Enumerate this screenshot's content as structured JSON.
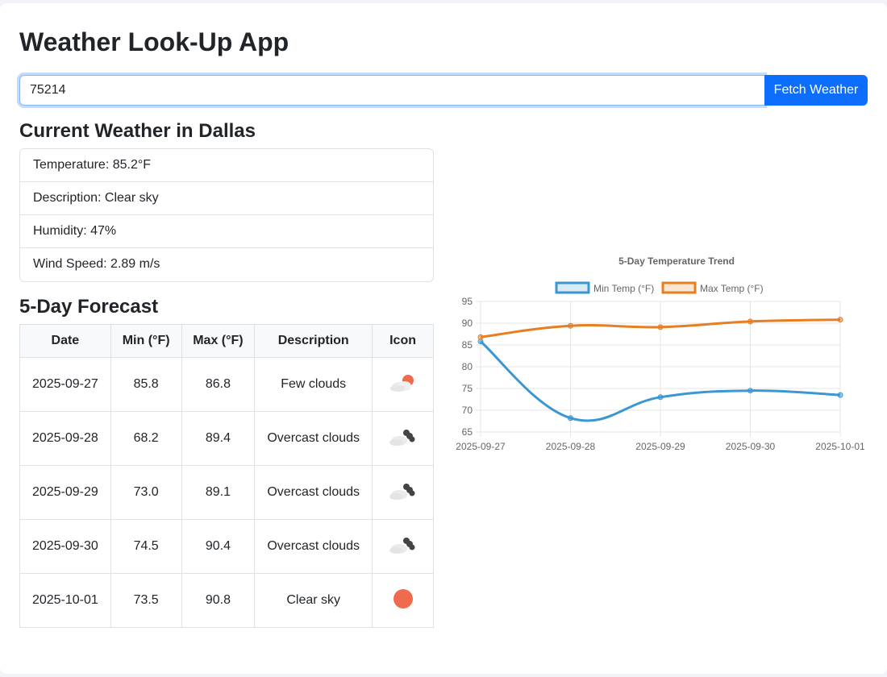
{
  "app": {
    "title": "Weather Look-Up App"
  },
  "search": {
    "value": "75214",
    "button_label": "Fetch Weather"
  },
  "current": {
    "heading": "Current Weather in Dallas",
    "temperature": "Temperature: 85.2°F",
    "description": "Description: Clear sky",
    "humidity": "Humidity: 47%",
    "wind": "Wind Speed: 2.89 m/s"
  },
  "forecast": {
    "heading": "5-Day Forecast",
    "columns": [
      "Date",
      "Min (°F)",
      "Max (°F)",
      "Description",
      "Icon"
    ],
    "rows": [
      {
        "date": "2025-09-27",
        "min": "85.8",
        "max": "86.8",
        "description": "Few clouds",
        "icon": "few-clouds-icon"
      },
      {
        "date": "2025-09-28",
        "min": "68.2",
        "max": "89.4",
        "description": "Overcast clouds",
        "icon": "overcast-clouds-icon"
      },
      {
        "date": "2025-09-29",
        "min": "73.0",
        "max": "89.1",
        "description": "Overcast clouds",
        "icon": "overcast-clouds-icon"
      },
      {
        "date": "2025-09-30",
        "min": "74.5",
        "max": "90.4",
        "description": "Overcast clouds",
        "icon": "overcast-clouds-icon"
      },
      {
        "date": "2025-10-01",
        "min": "73.5",
        "max": "90.8",
        "description": "Clear sky",
        "icon": "clear-sky-icon"
      }
    ]
  },
  "colors": {
    "primary": "#0d6efd",
    "min_series": "#3a97d4",
    "max_series": "#e67e22",
    "sun": "#ee6c4d",
    "cloud": "#e9e9e9",
    "dark_cloud": "#444444"
  },
  "chart_data": {
    "type": "line",
    "title": "5-Day Temperature Trend",
    "categories": [
      "2025-09-27",
      "2025-09-28",
      "2025-09-29",
      "2025-09-30",
      "2025-10-01"
    ],
    "series": [
      {
        "name": "Min Temp (°F)",
        "values": [
          85.8,
          68.2,
          73.0,
          74.5,
          73.5
        ],
        "color": "#3a97d4"
      },
      {
        "name": "Max Temp (°F)",
        "values": [
          86.8,
          89.4,
          89.1,
          90.4,
          90.8
        ],
        "color": "#e67e22"
      }
    ],
    "ylim": [
      65,
      95
    ],
    "yticks": [
      95,
      90,
      85,
      80,
      75,
      70,
      65
    ],
    "grid": true,
    "legend": "top-center"
  }
}
